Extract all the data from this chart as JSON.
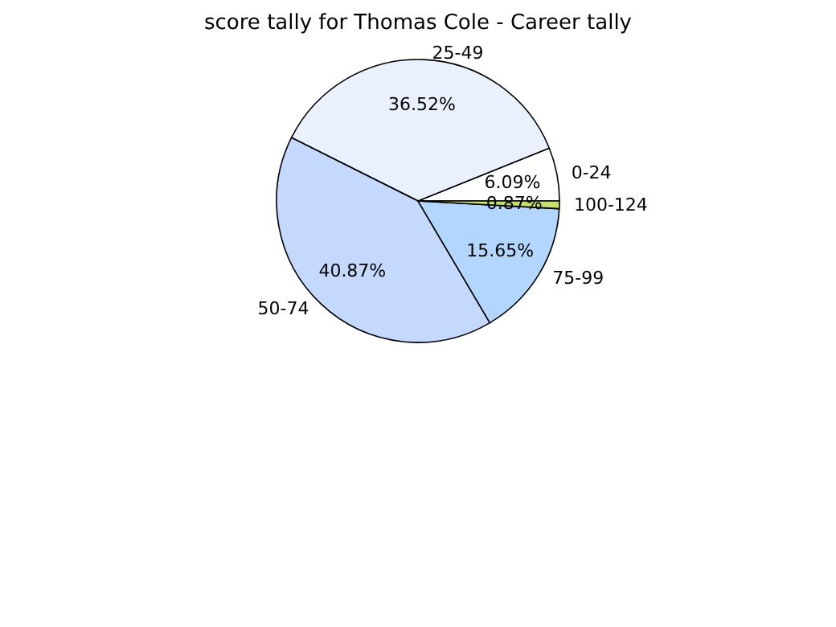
{
  "chart_data": {
    "type": "pie",
    "title": "score tally for Thomas Cole - Career tally",
    "categories": [
      "0-24",
      "25-49",
      "50-74",
      "75-99",
      "100-124"
    ],
    "values": [
      6.09,
      36.52,
      40.87,
      15.65,
      0.87
    ],
    "value_labels": [
      "6.09%",
      "36.52%",
      "40.87%",
      "15.65%",
      "0.87%"
    ],
    "colors": [
      "#ffffff",
      "#eaf1fe",
      "#c5d8fe",
      "#b3d6fe",
      "#c6e06a"
    ],
    "legend": false
  }
}
